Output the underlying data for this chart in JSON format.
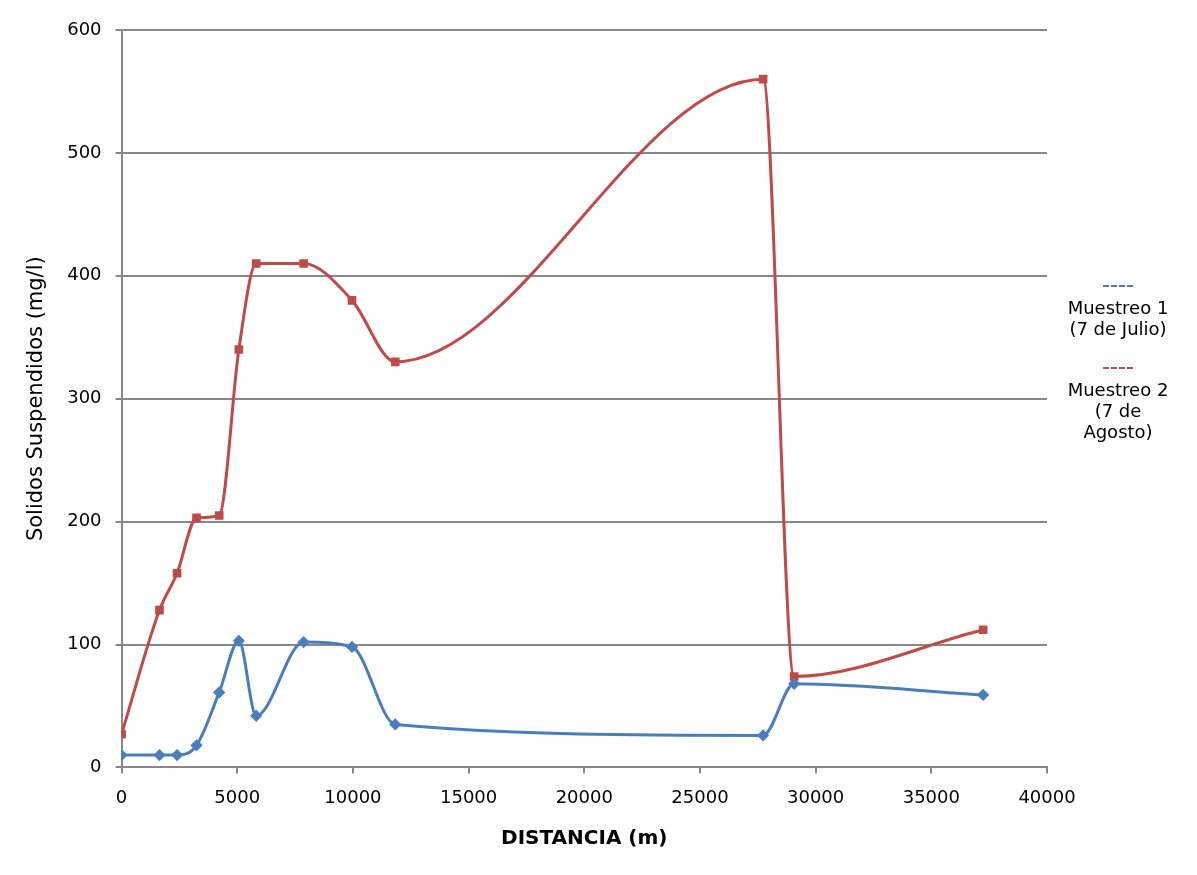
{
  "chart_data": {
    "type": "line",
    "xlabel": "DISTANCIA (m)",
    "ylabel": "Solidos Suspendidos (mg/l)",
    "xlim": [
      0,
      40000
    ],
    "xticks": [
      0,
      5000,
      10000,
      15000,
      20000,
      25000,
      30000,
      35000,
      40000
    ],
    "ylim": [
      0,
      600
    ],
    "yticks": [
      0,
      100,
      200,
      300,
      400,
      500,
      600
    ],
    "grid": "y",
    "legend": "right",
    "series": [
      {
        "name": "Muestreo 1 (7 de Julio)",
        "color": "#4a7ebb",
        "marker": "diamond",
        "x": [
          0,
          1640,
          2400,
          3240,
          4220,
          5070,
          5820,
          7870,
          9960,
          11830,
          27730,
          29070,
          37240
        ],
        "values": [
          10,
          10,
          10,
          18,
          61,
          103,
          42,
          102,
          98,
          35,
          26,
          68,
          59
        ]
      },
      {
        "name": "Muestreo 2 (7 de Agosto)",
        "color": "#be4b48",
        "marker": "square",
        "x": [
          0,
          1640,
          2400,
          3240,
          4220,
          5070,
          5820,
          7870,
          9960,
          11830,
          27730,
          29070,
          37240
        ],
        "values": [
          27,
          128,
          158,
          203,
          205,
          340,
          410,
          410,
          380,
          330,
          560,
          74,
          112
        ]
      }
    ]
  }
}
